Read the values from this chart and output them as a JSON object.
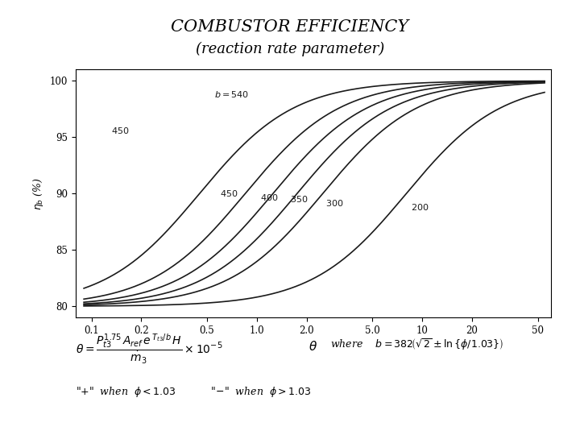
{
  "title_line1": "COMBUSTOR EFFICIENCY",
  "title_line2": "(reaction rate parameter)",
  "b_values": [
    540,
    450,
    400,
    350,
    300,
    200
  ],
  "theta_mids": [
    0.45,
    0.85,
    1.25,
    1.75,
    2.5,
    8.0
  ],
  "xlim": [
    0.08,
    60
  ],
  "ylim": [
    79,
    101
  ],
  "yticks": [
    80,
    85,
    90,
    95,
    100
  ],
  "xticks": [
    0.1,
    0.2,
    0.5,
    1.0,
    2.0,
    5.0,
    10,
    20,
    50
  ],
  "xtick_labels": [
    "0.1",
    "0.2",
    "0.5",
    "1.0",
    "2.0",
    "5.0",
    "10",
    "20",
    "50"
  ],
  "line_color": "#1a1a1a",
  "bg_color": "#ffffff",
  "k_steep": 3.5
}
